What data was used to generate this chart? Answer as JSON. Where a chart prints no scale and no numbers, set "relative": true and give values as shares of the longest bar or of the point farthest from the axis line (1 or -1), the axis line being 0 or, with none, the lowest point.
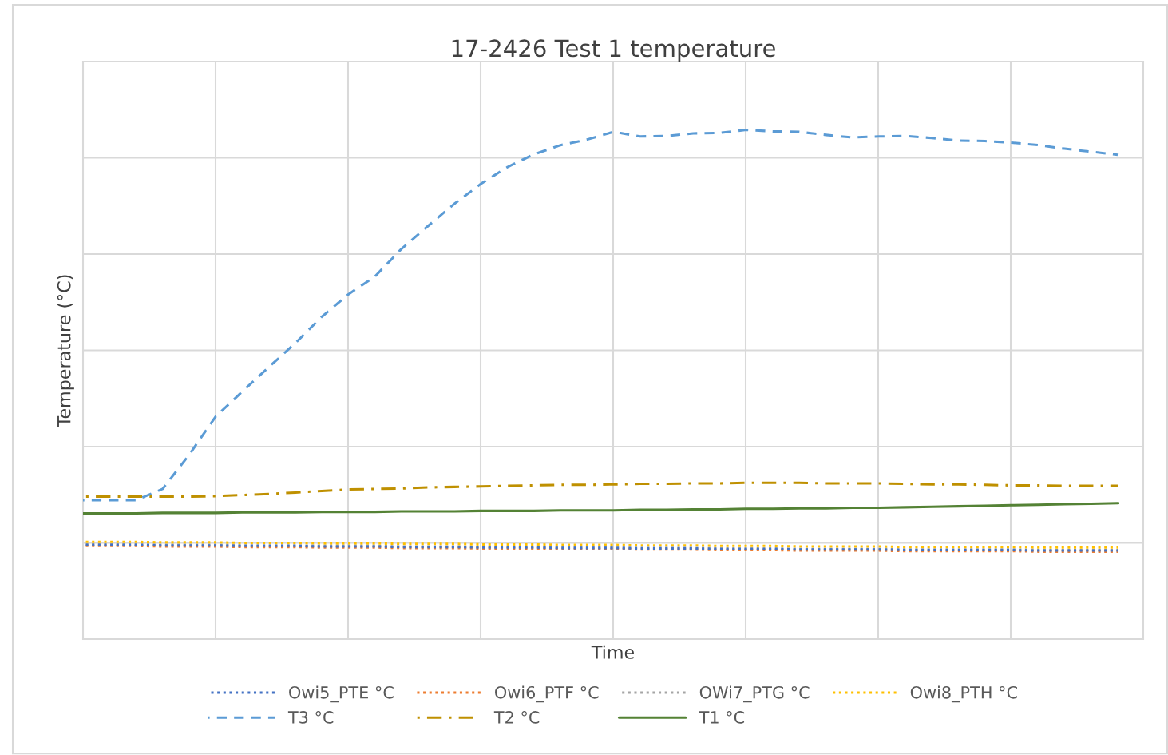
{
  "chart_data": {
    "type": "line",
    "title": "17-2426 Test 1 temperature",
    "xlabel": "Time",
    "ylabel": "Temperature (°C)",
    "relative": true,
    "grid": true,
    "legend": "bottom",
    "marker": "none",
    "categories": [
      null,
      null,
      null,
      null,
      null,
      null,
      null,
      null,
      null,
      null,
      null,
      null,
      null,
      null,
      null,
      null,
      null,
      null,
      null,
      null,
      null,
      null,
      null,
      null,
      null,
      null,
      null,
      null,
      null,
      null,
      null,
      null,
      null,
      null,
      null,
      null,
      null,
      null,
      null,
      null
    ],
    "series": [
      {
        "name": "Owi5_PTE °C",
        "color": "#4472c4",
        "line_style": "dotted",
        "values": [
          0.185,
          0.185,
          0.185,
          0.184,
          0.184,
          0.184,
          0.183,
          0.183,
          0.183,
          0.182,
          0.182,
          0.182,
          0.181,
          0.181,
          0.181,
          0.18,
          0.18,
          0.18,
          0.179,
          0.179,
          0.179,
          0.178,
          0.178,
          0.178,
          0.177,
          0.177,
          0.177,
          0.176,
          0.176,
          0.176,
          0.176,
          0.175,
          0.175,
          0.175,
          0.175,
          0.175,
          0.174,
          0.174,
          0.174,
          0.174
        ]
      },
      {
        "name": "Owi6_PTF °C",
        "color": "#ed7d31",
        "line_style": "dotted",
        "values": [
          0.183,
          0.183,
          0.183,
          0.182,
          0.182,
          0.182,
          0.181,
          0.181,
          0.181,
          0.18,
          0.18,
          0.18,
          0.179,
          0.179,
          0.179,
          0.178,
          0.178,
          0.178,
          0.177,
          0.177,
          0.177,
          0.176,
          0.176,
          0.176,
          0.175,
          0.175,
          0.175,
          0.174,
          0.174,
          0.174,
          0.174,
          0.173,
          0.173,
          0.173,
          0.173,
          0.173,
          0.172,
          0.172,
          0.172,
          0.172
        ]
      },
      {
        "name": "OWi7_PTG °C",
        "color": "#a5a5a5",
        "line_style": "dotted",
        "values": [
          0.186,
          0.186,
          0.186,
          0.185,
          0.185,
          0.185,
          0.184,
          0.184,
          0.184,
          0.183,
          0.183,
          0.183,
          0.182,
          0.182,
          0.182,
          0.181,
          0.181,
          0.181,
          0.18,
          0.18,
          0.18,
          0.179,
          0.179,
          0.179,
          0.178,
          0.178,
          0.178,
          0.177,
          0.177,
          0.177,
          0.177,
          0.176,
          0.176,
          0.176,
          0.176,
          0.176,
          0.175,
          0.175,
          0.175,
          0.175
        ]
      },
      {
        "name": "Owi8_PTH °C",
        "color": "#ffc000",
        "line_style": "dotted",
        "values": [
          0.191,
          0.191,
          0.191,
          0.19,
          0.19,
          0.19,
          0.189,
          0.189,
          0.189,
          0.188,
          0.188,
          0.188,
          0.187,
          0.187,
          0.187,
          0.186,
          0.186,
          0.186,
          0.185,
          0.185,
          0.185,
          0.184,
          0.184,
          0.184,
          0.183,
          0.183,
          0.183,
          0.182,
          0.182,
          0.182,
          0.182,
          0.181,
          0.181,
          0.181,
          0.181,
          0.181,
          0.18,
          0.18,
          0.18,
          0.18
        ]
      },
      {
        "name": "T3 °C",
        "color": "#5b9bd5",
        "line_style": "dashed",
        "values": [
          0.273,
          0.273,
          0.273,
          0.295,
          0.362,
          0.437,
          0.486,
          0.534,
          0.581,
          0.633,
          0.677,
          0.712,
          0.766,
          0.811,
          0.855,
          0.894,
          0.927,
          0.952,
          0.97,
          0.981,
          0.996,
          0.987,
          0.988,
          0.993,
          0.994,
          1.0,
          0.997,
          0.996,
          0.99,
          0.985,
          0.987,
          0.988,
          0.984,
          0.979,
          0.978,
          0.975,
          0.97,
          0.963,
          0.957,
          0.951
        ]
      },
      {
        "name": "T2 °C",
        "color": "#bf9000",
        "line_style": "dashdot",
        "values": [
          0.28,
          0.28,
          0.28,
          0.28,
          0.28,
          0.281,
          0.283,
          0.285,
          0.288,
          0.291,
          0.294,
          0.295,
          0.296,
          0.298,
          0.299,
          0.3,
          0.301,
          0.302,
          0.303,
          0.303,
          0.304,
          0.305,
          0.305,
          0.306,
          0.306,
          0.307,
          0.307,
          0.307,
          0.306,
          0.306,
          0.306,
          0.305,
          0.304,
          0.304,
          0.303,
          0.302,
          0.302,
          0.301,
          0.301,
          0.301
        ]
      },
      {
        "name": "T1 °C",
        "color": "#548235",
        "line_style": "solid",
        "values": [
          0.247,
          0.247,
          0.247,
          0.248,
          0.248,
          0.248,
          0.249,
          0.249,
          0.249,
          0.25,
          0.25,
          0.25,
          0.251,
          0.251,
          0.251,
          0.252,
          0.252,
          0.252,
          0.253,
          0.253,
          0.253,
          0.254,
          0.254,
          0.255,
          0.255,
          0.256,
          0.256,
          0.257,
          0.257,
          0.258,
          0.258,
          0.259,
          0.26,
          0.261,
          0.262,
          0.263,
          0.264,
          0.265,
          0.266,
          0.267
        ]
      }
    ]
  }
}
